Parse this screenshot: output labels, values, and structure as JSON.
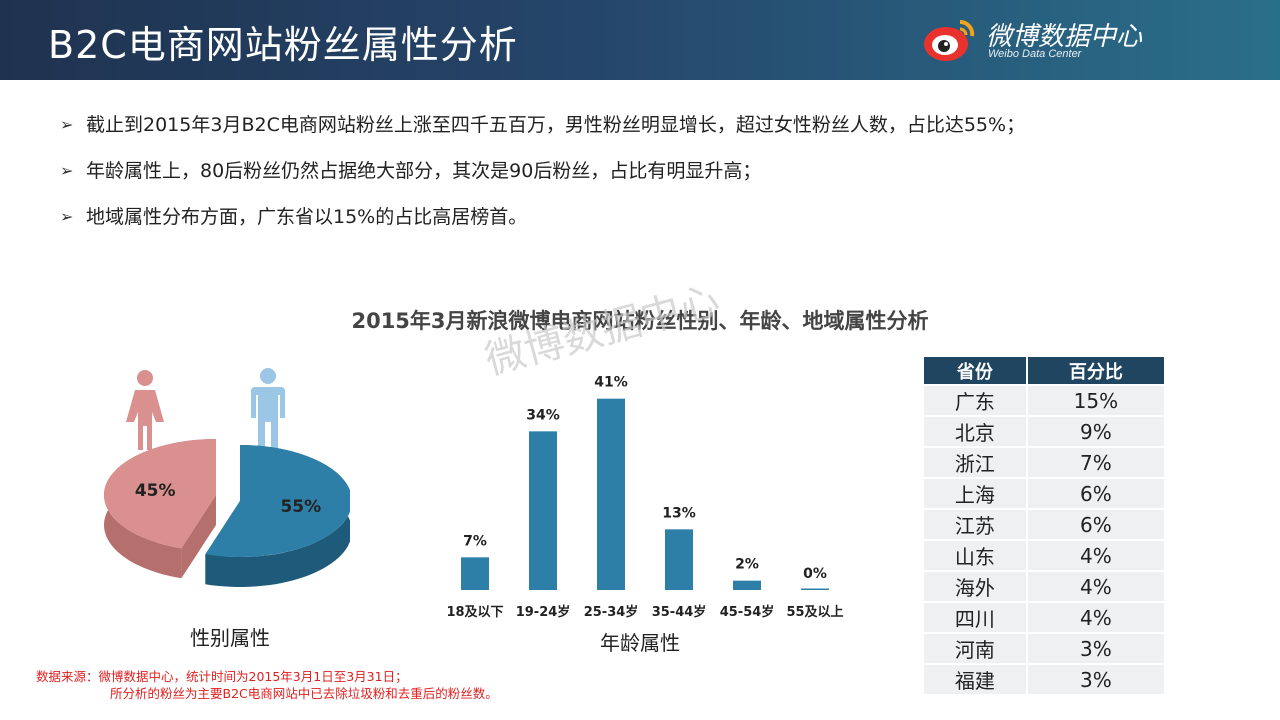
{
  "header": {
    "title": "B2C电商网站粉丝属性分析",
    "logo_text": "微博数据中心",
    "logo_sub": "Weibo Data Center"
  },
  "bullets": [
    "截止到2015年3月B2C电商网站粉丝上涨至四千五百万，男性粉丝明显增长，超过女性粉丝人数，占比达55%；",
    "年龄属性上，80后粉丝仍然占据绝大部分，其次是90后粉丝，占比有明显升高；",
    "地域属性分布方面，广东省以15%的占比高居榜首。"
  ],
  "chart_title": "2015年3月新浪微博电商网站粉丝性别、年龄、地域属性分析",
  "watermark": "微博数据中心",
  "colors": {
    "female": "#d9908e",
    "male": "#2d7fa8",
    "header": "#1f4560"
  },
  "chart_data": [
    {
      "type": "pie",
      "title": "性别属性",
      "categories": [
        "女",
        "男"
      ],
      "values": [
        45,
        55
      ],
      "labels": [
        "45%",
        "55%"
      ]
    },
    {
      "type": "bar",
      "title": "年龄属性",
      "categories": [
        "18及以下",
        "19-24岁",
        "25-34岁",
        "35-44岁",
        "45-54岁",
        "55及以上"
      ],
      "values": [
        7,
        34,
        41,
        13,
        2,
        0
      ],
      "labels": [
        "7%",
        "34%",
        "41%",
        "13%",
        "2%",
        "0%"
      ],
      "ylim": [
        0,
        45
      ]
    },
    {
      "type": "table",
      "columns": [
        "省份",
        "百分比"
      ],
      "rows": [
        [
          "广东",
          "15%"
        ],
        [
          "北京",
          "9%"
        ],
        [
          "浙江",
          "7%"
        ],
        [
          "上海",
          "6%"
        ],
        [
          "江苏",
          "6%"
        ],
        [
          "山东",
          "4%"
        ],
        [
          "海外",
          "4%"
        ],
        [
          "四川",
          "4%"
        ],
        [
          "河南",
          "3%"
        ],
        [
          "福建",
          "3%"
        ]
      ]
    }
  ],
  "source": {
    "line1": "数据来源：微博数据中心，统计时间为2015年3月1日至3月31日；",
    "line2": "所分析的粉丝为主要B2C电商网站中已去除垃圾粉和去重后的粉丝数。"
  }
}
